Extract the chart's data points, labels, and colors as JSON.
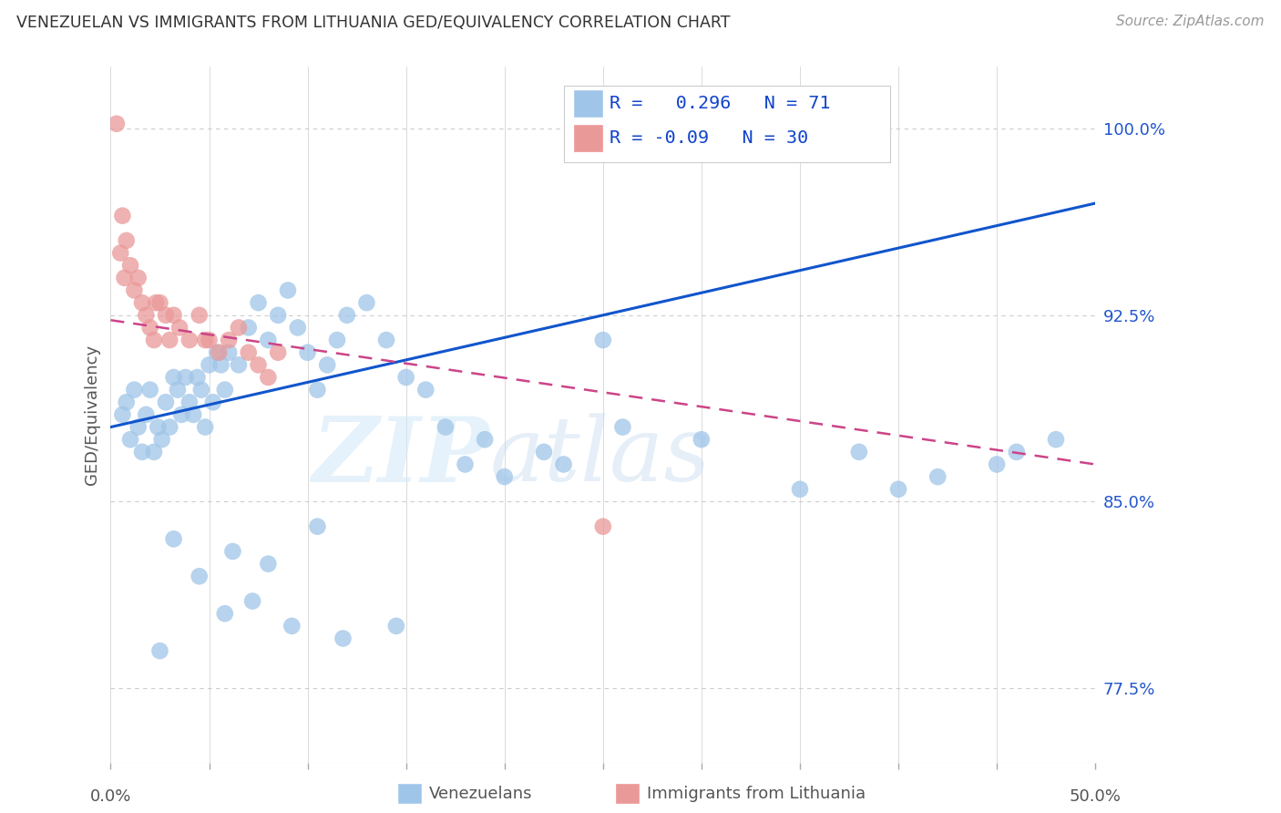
{
  "title": "VENEZUELAN VS IMMIGRANTS FROM LITHUANIA GED/EQUIVALENCY CORRELATION CHART",
  "source": "Source: ZipAtlas.com",
  "ylabel": "GED/Equivalency",
  "yticks": [
    77.5,
    85.0,
    92.5,
    100.0
  ],
  "ytick_labels": [
    "77.5%",
    "85.0%",
    "92.5%",
    "100.0%"
  ],
  "xmin": 0.0,
  "xmax": 50.0,
  "ymin": 74.5,
  "ymax": 102.5,
  "blue_R": 0.296,
  "blue_N": 71,
  "pink_R": -0.09,
  "pink_N": 30,
  "blue_color": "#9fc5e8",
  "pink_color": "#ea9999",
  "blue_line_color": "#1155cc",
  "pink_line_color": "#cc4488",
  "watermark_zip": "ZIP",
  "watermark_atlas": "atlas",
  "legend_label_blue": "Venezuelans",
  "legend_label_pink": "Immigrants from Lithuania",
  "blue_line_x0": 0.0,
  "blue_line_y0": 88.0,
  "blue_line_x1": 50.0,
  "blue_line_y1": 97.0,
  "pink_line_x0": 0.0,
  "pink_line_y0": 92.3,
  "pink_line_x1": 50.0,
  "pink_line_y1": 86.5,
  "blue_pts_x": [
    0.6,
    0.8,
    1.0,
    1.2,
    1.4,
    1.6,
    1.8,
    2.0,
    2.2,
    2.4,
    2.6,
    2.8,
    3.0,
    3.2,
    3.4,
    3.6,
    3.8,
    4.0,
    4.2,
    4.4,
    4.6,
    4.8,
    5.0,
    5.2,
    5.4,
    5.6,
    5.8,
    6.0,
    6.5,
    7.0,
    7.5,
    8.0,
    8.5,
    9.0,
    9.5,
    10.0,
    10.5,
    11.0,
    11.5,
    12.0,
    13.0,
    14.0,
    15.0,
    16.0,
    17.0,
    18.0,
    19.0,
    20.0,
    22.0,
    23.0,
    25.0,
    26.0,
    30.0,
    35.0,
    38.0,
    40.0,
    42.0,
    45.0,
    46.0,
    48.0,
    10.5,
    8.0,
    6.2,
    4.5,
    3.2,
    5.8,
    7.2,
    9.2,
    11.8,
    14.5,
    2.5
  ],
  "blue_pts_y": [
    88.5,
    89.0,
    87.5,
    89.5,
    88.0,
    87.0,
    88.5,
    89.5,
    87.0,
    88.0,
    87.5,
    89.0,
    88.0,
    90.0,
    89.5,
    88.5,
    90.0,
    89.0,
    88.5,
    90.0,
    89.5,
    88.0,
    90.5,
    89.0,
    91.0,
    90.5,
    89.5,
    91.0,
    90.5,
    92.0,
    93.0,
    91.5,
    92.5,
    93.5,
    92.0,
    91.0,
    89.5,
    90.5,
    91.5,
    92.5,
    93.0,
    91.5,
    90.0,
    89.5,
    88.0,
    86.5,
    87.5,
    86.0,
    87.0,
    86.5,
    91.5,
    88.0,
    87.5,
    85.5,
    87.0,
    85.5,
    86.0,
    86.5,
    87.0,
    87.5,
    84.0,
    82.5,
    83.0,
    82.0,
    83.5,
    80.5,
    81.0,
    80.0,
    79.5,
    80.0,
    79.0
  ],
  "pink_pts_x": [
    0.3,
    0.5,
    0.6,
    0.7,
    0.8,
    1.0,
    1.2,
    1.4,
    1.6,
    1.8,
    2.0,
    2.2,
    2.5,
    2.8,
    3.0,
    3.5,
    4.0,
    4.5,
    5.0,
    5.5,
    6.0,
    6.5,
    7.0,
    7.5,
    8.0,
    8.5,
    3.2,
    2.3,
    4.8,
    25.0
  ],
  "pink_pts_y": [
    100.2,
    95.0,
    96.5,
    94.0,
    95.5,
    94.5,
    93.5,
    94.0,
    93.0,
    92.5,
    92.0,
    91.5,
    93.0,
    92.5,
    91.5,
    92.0,
    91.5,
    92.5,
    91.5,
    91.0,
    91.5,
    92.0,
    91.0,
    90.5,
    90.0,
    91.0,
    92.5,
    93.0,
    91.5,
    84.0
  ]
}
